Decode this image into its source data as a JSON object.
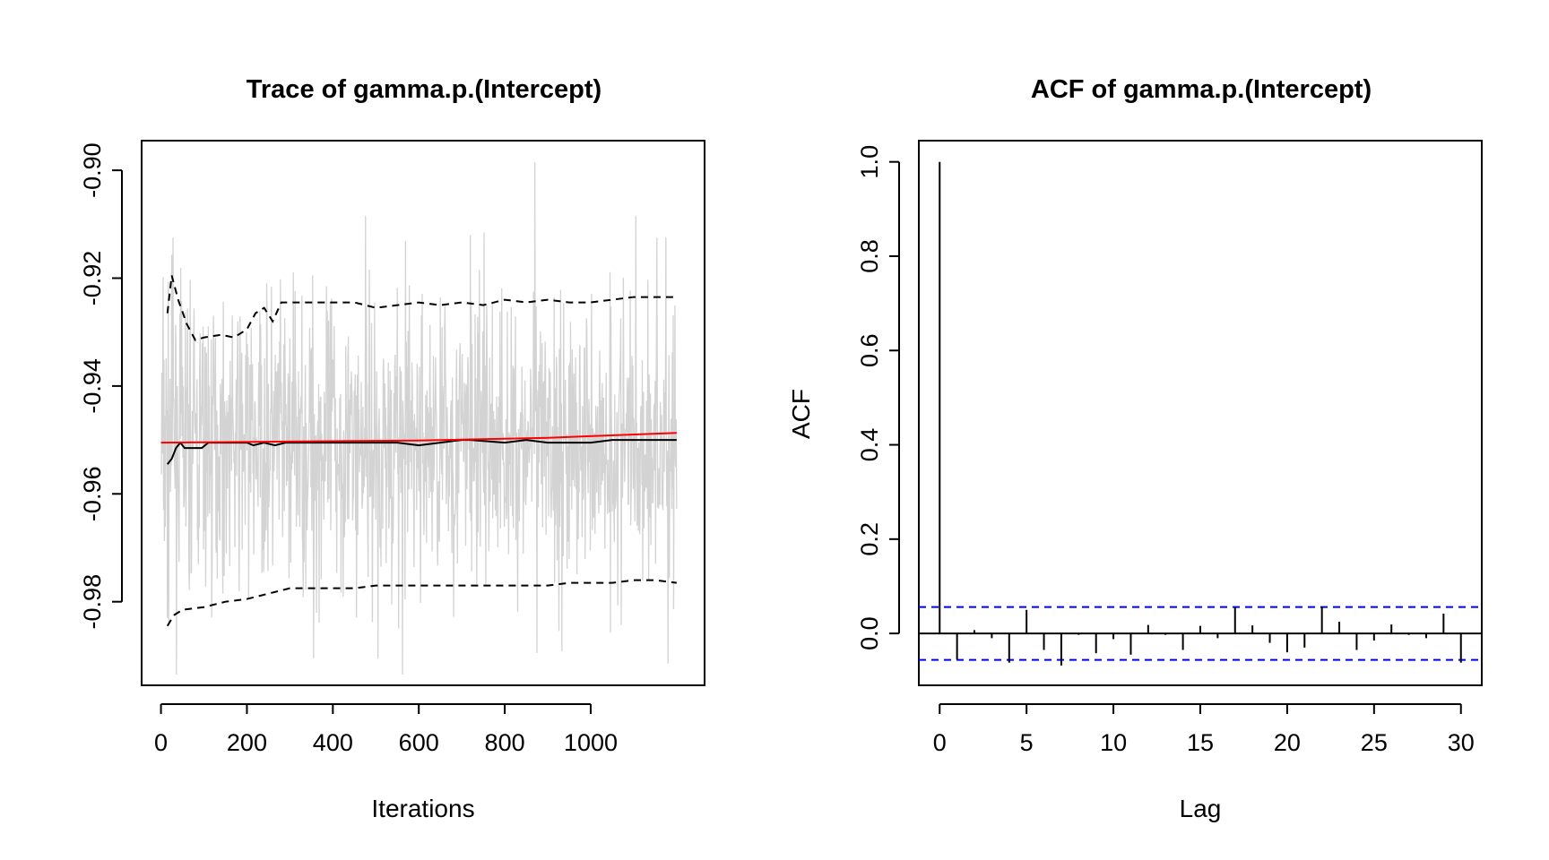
{
  "chart_data": [
    {
      "type": "line",
      "title": "Trace of gamma.p.(Intercept)",
      "xlabel": "Iterations",
      "ylabel": "",
      "xlim": [
        -45,
        1265
      ],
      "ylim": [
        -0.9955,
        -0.8945
      ],
      "x_ticks": [
        0,
        200,
        400,
        600,
        800,
        1000
      ],
      "x_tick_labels": [
        "0",
        "200",
        "400",
        "600",
        "800",
        "1000"
      ],
      "y_ticks": [
        -0.98,
        -0.96,
        -0.94,
        -0.92,
        -0.9
      ],
      "y_tick_labels": [
        "-0.98",
        "-0.96",
        "-0.94",
        "-0.92",
        "-0.90"
      ],
      "grid": false,
      "trace": {
        "n_iterations": 1200,
        "color": "#d3d3d3",
        "summary": {
          "center": -0.9505,
          "typical_low": -0.968,
          "typical_high": -0.933,
          "min": -0.9935,
          "max": -0.8985
        },
        "extremes": [
          {
            "x": 15,
            "y": -0.983
          },
          {
            "x": 28,
            "y": -0.9125
          },
          {
            "x": 355,
            "y": -0.9905
          },
          {
            "x": 476,
            "y": -0.9085
          },
          {
            "x": 505,
            "y": -0.9905
          },
          {
            "x": 562,
            "y": -0.9935
          },
          {
            "x": 720,
            "y": -0.912
          },
          {
            "x": 752,
            "y": -0.9115
          },
          {
            "x": 870,
            "y": -0.8985
          },
          {
            "x": 875,
            "y": -0.9895
          },
          {
            "x": 1105,
            "y": -0.9085
          },
          {
            "x": 1175,
            "y": -0.9125
          },
          {
            "x": 1180,
            "y": -0.9915
          }
        ]
      },
      "series": [
        {
          "style": "solid",
          "color": "#000000",
          "x": [
            15,
            25,
            35,
            45,
            55,
            65,
            80,
            95,
            110,
            140,
            170,
            200,
            215,
            240,
            265,
            290,
            330,
            400,
            450,
            500,
            550,
            600,
            650,
            700,
            720,
            800,
            850,
            900,
            950,
            1000,
            1050,
            1100,
            1150,
            1200
          ],
          "y": [
            -0.9545,
            -0.9535,
            -0.9515,
            -0.9505,
            -0.9515,
            -0.9515,
            -0.9515,
            -0.9515,
            -0.9505,
            -0.9505,
            -0.9505,
            -0.9505,
            -0.951,
            -0.9505,
            -0.951,
            -0.9505,
            -0.9505,
            -0.9505,
            -0.9505,
            -0.9505,
            -0.9505,
            -0.951,
            -0.9505,
            -0.95,
            -0.95,
            -0.9505,
            -0.95,
            -0.9505,
            -0.9505,
            -0.9505,
            -0.95,
            -0.95,
            -0.95,
            -0.95
          ]
        },
        {
          "style": "solid",
          "color": "#ff0000",
          "x": [
            0,
            300,
            600,
            900,
            1200
          ],
          "y": [
            -0.9505,
            -0.9503,
            -0.9501,
            -0.9496,
            -0.9487
          ]
        },
        {
          "style": "dashed",
          "color": "#000000",
          "x": [
            15,
            25,
            40,
            60,
            80,
            100,
            140,
            170,
            200,
            220,
            240,
            260,
            280,
            300,
            350,
            450,
            500,
            550,
            600,
            650,
            700,
            750,
            800,
            850,
            900,
            950,
            1000,
            1050,
            1100,
            1150,
            1200
          ],
          "y": [
            -0.9265,
            -0.9195,
            -0.924,
            -0.9285,
            -0.9315,
            -0.931,
            -0.9305,
            -0.931,
            -0.9295,
            -0.9265,
            -0.9255,
            -0.928,
            -0.9245,
            -0.9245,
            -0.9245,
            -0.9245,
            -0.9255,
            -0.925,
            -0.9245,
            -0.925,
            -0.9245,
            -0.925,
            -0.924,
            -0.9245,
            -0.924,
            -0.9245,
            -0.9245,
            -0.924,
            -0.9235,
            -0.9235,
            -0.9235
          ]
        },
        {
          "style": "dashed",
          "color": "#000000",
          "x": [
            15,
            30,
            50,
            100,
            150,
            200,
            250,
            300,
            350,
            400,
            450,
            500,
            550,
            600,
            700,
            800,
            900,
            950,
            1000,
            1050,
            1100,
            1150,
            1200
          ],
          "y": [
            -0.9845,
            -0.9825,
            -0.9815,
            -0.981,
            -0.98,
            -0.9795,
            -0.9785,
            -0.9775,
            -0.9775,
            -0.9775,
            -0.9775,
            -0.977,
            -0.977,
            -0.977,
            -0.977,
            -0.977,
            -0.977,
            -0.9765,
            -0.9765,
            -0.9765,
            -0.976,
            -0.976,
            -0.9765
          ]
        }
      ]
    },
    {
      "type": "bar",
      "title": "ACF of gamma.p.(Intercept)",
      "xlabel": "Lag",
      "ylabel": "ACF",
      "xlim": [
        -1.2,
        31.2
      ],
      "ylim": [
        -0.11,
        1.045
      ],
      "x_ticks": [
        0,
        5,
        10,
        15,
        20,
        25,
        30
      ],
      "x_tick_labels": [
        "0",
        "5",
        "10",
        "15",
        "20",
        "25",
        "30"
      ],
      "y_ticks": [
        0,
        0.2,
        0.4,
        0.6,
        0.8,
        1
      ],
      "y_tick_labels": [
        "0.0",
        "0.2",
        "0.4",
        "0.6",
        "0.8",
        "1.0"
      ],
      "grid": false,
      "lags": [
        0,
        1,
        2,
        3,
        4,
        5,
        6,
        7,
        8,
        9,
        10,
        11,
        12,
        13,
        14,
        15,
        16,
        17,
        18,
        19,
        20,
        21,
        22,
        23,
        24,
        25,
        26,
        27,
        28,
        29,
        30
      ],
      "values": [
        1.0,
        -0.055,
        0.007,
        -0.01,
        -0.062,
        0.05,
        -0.035,
        -0.068,
        -0.003,
        -0.042,
        -0.012,
        -0.045,
        0.018,
        -0.003,
        -0.035,
        0.016,
        -0.01,
        0.055,
        0.017,
        -0.02,
        -0.04,
        -0.03,
        0.057,
        0.025,
        -0.035,
        -0.015,
        0.019,
        -0.003,
        -0.01,
        0.042,
        -0.062
      ],
      "confidence_bound": 0.056,
      "confidence_color": "#0000ff"
    }
  ]
}
